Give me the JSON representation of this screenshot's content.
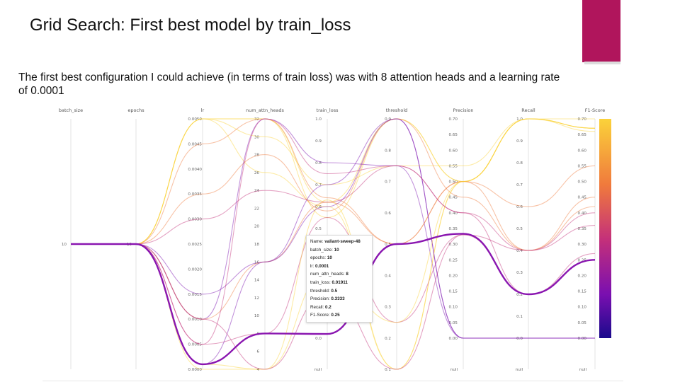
{
  "slide": {
    "title": "Grid Search: First best model by train_loss",
    "body": "The first best configuration I could achieve (in terms of train loss) was with 8 attention heads and a learning rate of 0.0001",
    "accent_color": "#b0155c"
  },
  "chart_data": {
    "type": "parallel_coordinates",
    "axes": [
      {
        "name": "batch_size",
        "ticks": [
          "10"
        ]
      },
      {
        "name": "epochs",
        "ticks": [
          "10"
        ]
      },
      {
        "name": "lr",
        "ticks": [
          "0.0050",
          "0.0045",
          "0.0040",
          "0.0035",
          "0.0030",
          "0.0025",
          "0.0020",
          "0.0015",
          "0.0010",
          "0.0005",
          "0.0000"
        ]
      },
      {
        "name": "num_attn_heads",
        "ticks": [
          "32",
          "30",
          "28",
          "26",
          "24",
          "22",
          "20",
          "18",
          "16",
          "14",
          "12",
          "10",
          "8",
          "6",
          "4"
        ]
      },
      {
        "name": "train_loss",
        "ticks": [
          "1.0",
          "0.9",
          "0.8",
          "0.7",
          "0.6",
          "0.5",
          "0.4",
          "0.3",
          "0.2",
          "0.1",
          "0.0",
          "null"
        ]
      },
      {
        "name": "threshold",
        "ticks": [
          "0.9",
          "0.8",
          "0.7",
          "0.6",
          "0.5",
          "0.4",
          "0.3",
          "0.2",
          "0.1"
        ]
      },
      {
        "name": "Precision",
        "ticks": [
          "0.70",
          "0.65",
          "0.60",
          "0.55",
          "0.50",
          "0.45",
          "0.40",
          "0.35",
          "0.30",
          "0.25",
          "0.20",
          "0.15",
          "0.10",
          "0.05",
          "0.00",
          "null"
        ]
      },
      {
        "name": "Recall",
        "ticks": [
          "1.0",
          "0.9",
          "0.8",
          "0.7",
          "0.6",
          "0.5",
          "0.4",
          "0.3",
          "0.2",
          "0.1",
          "0.0",
          "null"
        ]
      },
      {
        "name": "F1-Score",
        "ticks": [
          "0.70",
          "0.65",
          "0.60",
          "0.55",
          "0.50",
          "0.45",
          "0.40",
          "0.35",
          "0.30",
          "0.25",
          "0.20",
          "0.15",
          "0.10",
          "0.05",
          "0.00",
          "null"
        ]
      }
    ],
    "color_scale": {
      "metric": "F1-Score",
      "min": 0.0,
      "max": 0.7,
      "colors": [
        "#1a0a8c",
        "#7a0fb0",
        "#c4307a",
        "#f07a3c",
        "#fbd23a"
      ]
    },
    "highlighted_run": {
      "name": "valiant-sweep-48",
      "batch_size": 10,
      "epochs": 10,
      "lr": 0.0001,
      "num_attn_heads": 8,
      "train_loss": 0.01911,
      "threshold": 0.5,
      "Precision": 0.3333,
      "Recall": 0.2,
      "F1-Score": 0.25
    },
    "tooltip_rows": [
      {
        "label": "Name:",
        "value": "valiant-sweep-48"
      },
      {
        "label": "batch_size:",
        "value": "10"
      },
      {
        "label": "epochs:",
        "value": "10"
      },
      {
        "label": "lr:",
        "value": "0.0001"
      },
      {
        "label": "num_attn_heads:",
        "value": "8"
      },
      {
        "label": "train_loss:",
        "value": "0.01911"
      },
      {
        "label": "threshold:",
        "value": "0.5"
      },
      {
        "label": "Precision:",
        "value": "0.3333"
      },
      {
        "label": "Recall:",
        "value": "0.2"
      },
      {
        "label": "F1-Score:",
        "value": "0.25"
      }
    ],
    "background_runs": [
      {
        "lr": 0.005,
        "num_attn_heads": 32,
        "train_loss": 0.62,
        "threshold": 0.9,
        "Precision": 0.5,
        "Recall": 1.0,
        "F1-Score": 0.67
      },
      {
        "lr": 0.005,
        "num_attn_heads": 32,
        "train_loss": 0.55,
        "threshold": 0.9,
        "Precision": 0.5,
        "Recall": 1.0,
        "F1-Score": 0.67
      },
      {
        "lr": 0.005,
        "num_attn_heads": 30,
        "train_loss": 0.7,
        "threshold": 0.75,
        "Precision": 0.55,
        "Recall": 1.0,
        "F1-Score": 0.7
      },
      {
        "lr": 0.0045,
        "num_attn_heads": 32,
        "train_loss": 0.64,
        "threshold": 0.5,
        "Precision": 0.5,
        "Recall": 0.6,
        "F1-Score": 0.55
      },
      {
        "lr": 0.005,
        "num_attn_heads": 26,
        "train_loss": 0.6,
        "threshold": 0.1,
        "Precision": 0.5,
        "Recall": 1.0,
        "F1-Score": 0.67
      },
      {
        "lr": 0.0035,
        "num_attn_heads": 28,
        "train_loss": 0.58,
        "threshold": 0.9,
        "Precision": 0.45,
        "Recall": 0.4,
        "F1-Score": 0.42
      },
      {
        "lr": 0.003,
        "num_attn_heads": 24,
        "train_loss": 0.62,
        "threshold": 0.75,
        "Precision": 0.4,
        "Recall": 0.2,
        "F1-Score": 0.27
      },
      {
        "lr": 0.0015,
        "num_attn_heads": 16,
        "train_loss": 0.7,
        "threshold": 0.9,
        "Precision": 0.0,
        "Recall": 0.0,
        "F1-Score": 0.0
      },
      {
        "lr": 0.001,
        "num_attn_heads": 32,
        "train_loss": 0.8,
        "threshold": 0.75,
        "Precision": 0.0,
        "Recall": 0.0,
        "F1-Score": 0.0
      },
      {
        "lr": 0.001,
        "num_attn_heads": 16,
        "train_loss": 0.62,
        "threshold": 0.5,
        "Precision": 0.5,
        "Recall": 0.4,
        "F1-Score": 0.45
      },
      {
        "lr": 0.0005,
        "num_attn_heads": 8,
        "train_loss": 0.55,
        "threshold": 0.25,
        "Precision": 0.33,
        "Recall": 0.2,
        "F1-Score": 0.25
      },
      {
        "lr": 0.0001,
        "num_attn_heads": 4,
        "train_loss": 0.63,
        "threshold": 0.1,
        "Precision": 0.5,
        "Recall": 1.0,
        "F1-Score": 0.67
      },
      {
        "lr": 0.0001,
        "num_attn_heads": 16,
        "train_loss": 0.6,
        "threshold": 0.9,
        "Precision": 0.0,
        "Recall": 0.0,
        "F1-Score": 0.0
      },
      {
        "lr": 0.0,
        "num_attn_heads": 4,
        "train_loss": 0.3,
        "threshold": 0.25,
        "Precision": 0.5,
        "Recall": 1.0,
        "F1-Score": 0.66
      },
      {
        "lr": 0.001,
        "num_attn_heads": 4,
        "train_loss": 0.2,
        "threshold": 0.1,
        "Precision": 0.33,
        "Recall": 0.4,
        "F1-Score": 0.36
      },
      {
        "lr": 0.0005,
        "num_attn_heads": 32,
        "train_loss": 0.75,
        "threshold": 0.75,
        "Precision": 0.4,
        "Recall": 0.4,
        "F1-Score": 0.4
      }
    ]
  }
}
